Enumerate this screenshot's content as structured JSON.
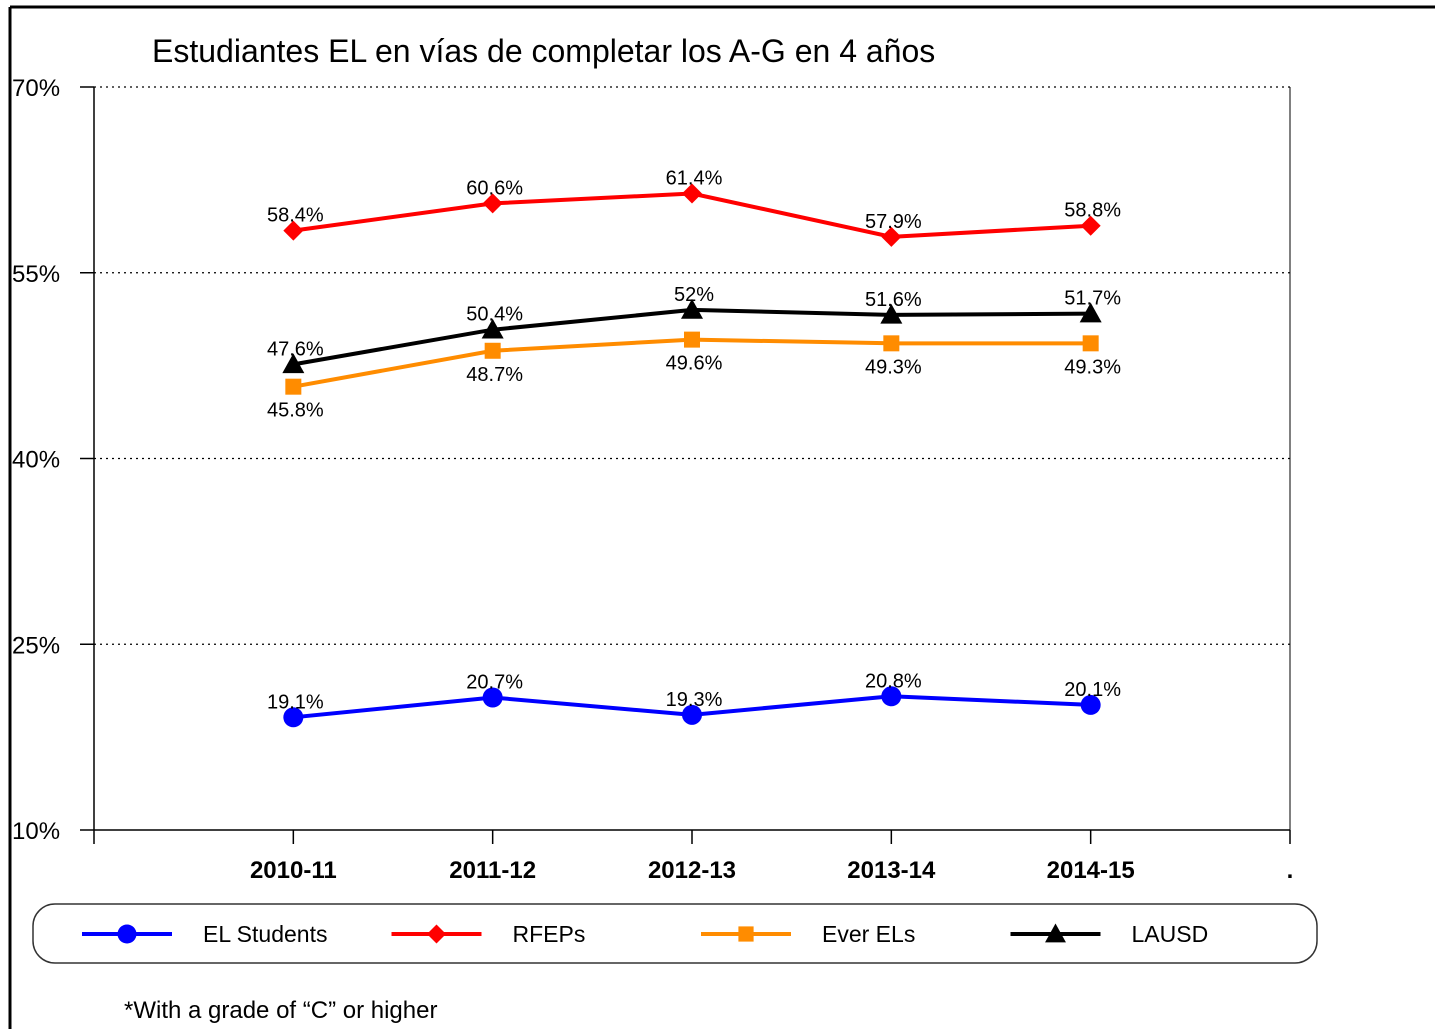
{
  "chart_data": {
    "type": "line",
    "title": "Estudiantes EL en vías de completar los A-G en 4 años",
    "footnote": "*With a grade of “C” or higher",
    "categories": [
      "2010-11",
      "2011-12",
      "2012-13",
      "2013-14",
      "2014-15",
      "."
    ],
    "ylim": [
      10,
      70
    ],
    "yticks": [
      {
        "value": 10,
        "label": "10%"
      },
      {
        "value": 25,
        "label": "25%"
      },
      {
        "value": 40,
        "label": "40%"
      },
      {
        "value": 55,
        "label": "55%"
      },
      {
        "value": 70,
        "label": "70%"
      }
    ],
    "grid": true,
    "legend": "bottom",
    "series": [
      {
        "name": "EL Students",
        "color": "#0000ff",
        "marker": "circle",
        "values": [
          19.1,
          20.7,
          19.3,
          20.8,
          20.1,
          null
        ],
        "value_labels": [
          "19.1%",
          "20.7%",
          "19.3%",
          "20.8%",
          "20.1%",
          null
        ]
      },
      {
        "name": "RFEPs",
        "color": "#ff0000",
        "marker": "diamond",
        "values": [
          58.4,
          60.6,
          61.4,
          57.9,
          58.8,
          null
        ],
        "value_labels": [
          "58.4%",
          "60.6%",
          "61.4%",
          "57.9%",
          "58.8%",
          null
        ]
      },
      {
        "name": "Ever ELs",
        "color": "#ff8c00",
        "marker": "square",
        "values": [
          45.8,
          48.7,
          49.6,
          49.3,
          49.3,
          null
        ],
        "value_labels": [
          "45.8%",
          "48.7%",
          "49.6%",
          "49.3%",
          "49.3%",
          null
        ]
      },
      {
        "name": "LAUSD",
        "color": "#000000",
        "marker": "triangle",
        "values": [
          47.6,
          50.4,
          52,
          51.6,
          51.7,
          null
        ],
        "value_labels": [
          "47.6%",
          "50.4%",
          "52%",
          "51.6%",
          "51.7%",
          null
        ]
      }
    ]
  }
}
